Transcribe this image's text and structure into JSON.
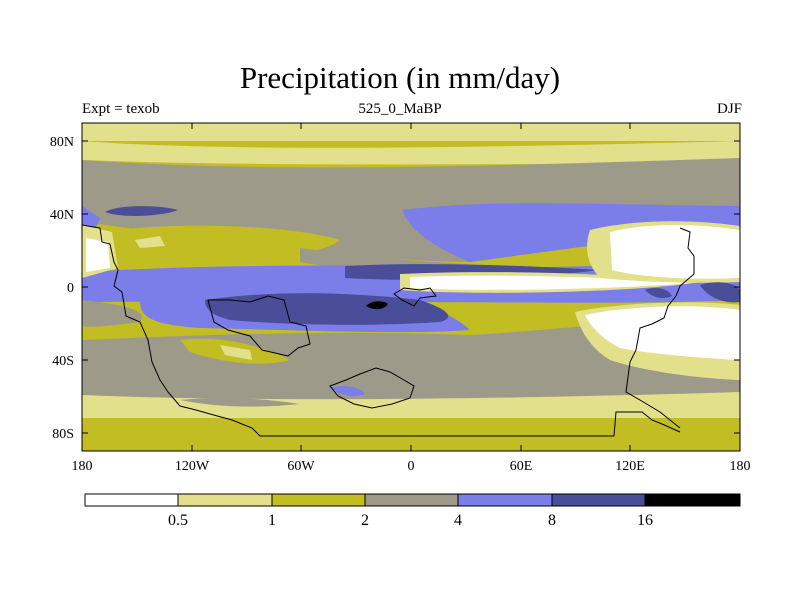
{
  "title": "Precipitation (in mm/day)",
  "subtitle_left": "Expt = texob",
  "subtitle_center": "525_0_MaBP",
  "subtitle_right": "DJF",
  "map": {
    "lat_labels": [
      "80N",
      "40N",
      "0",
      "40S",
      "80S"
    ],
    "lon_labels": [
      "180",
      "120W",
      "60W",
      "0",
      "60E",
      "120E",
      "180"
    ]
  },
  "colorbar": {
    "colors": [
      "#ffffff",
      "#e3e08c",
      "#c2bd23",
      "#9e9a8a",
      "#7b7de8",
      "#4a4d97",
      "#000000"
    ],
    "labels": [
      "0.5",
      "1",
      "2",
      "4",
      "8",
      "16"
    ]
  }
}
